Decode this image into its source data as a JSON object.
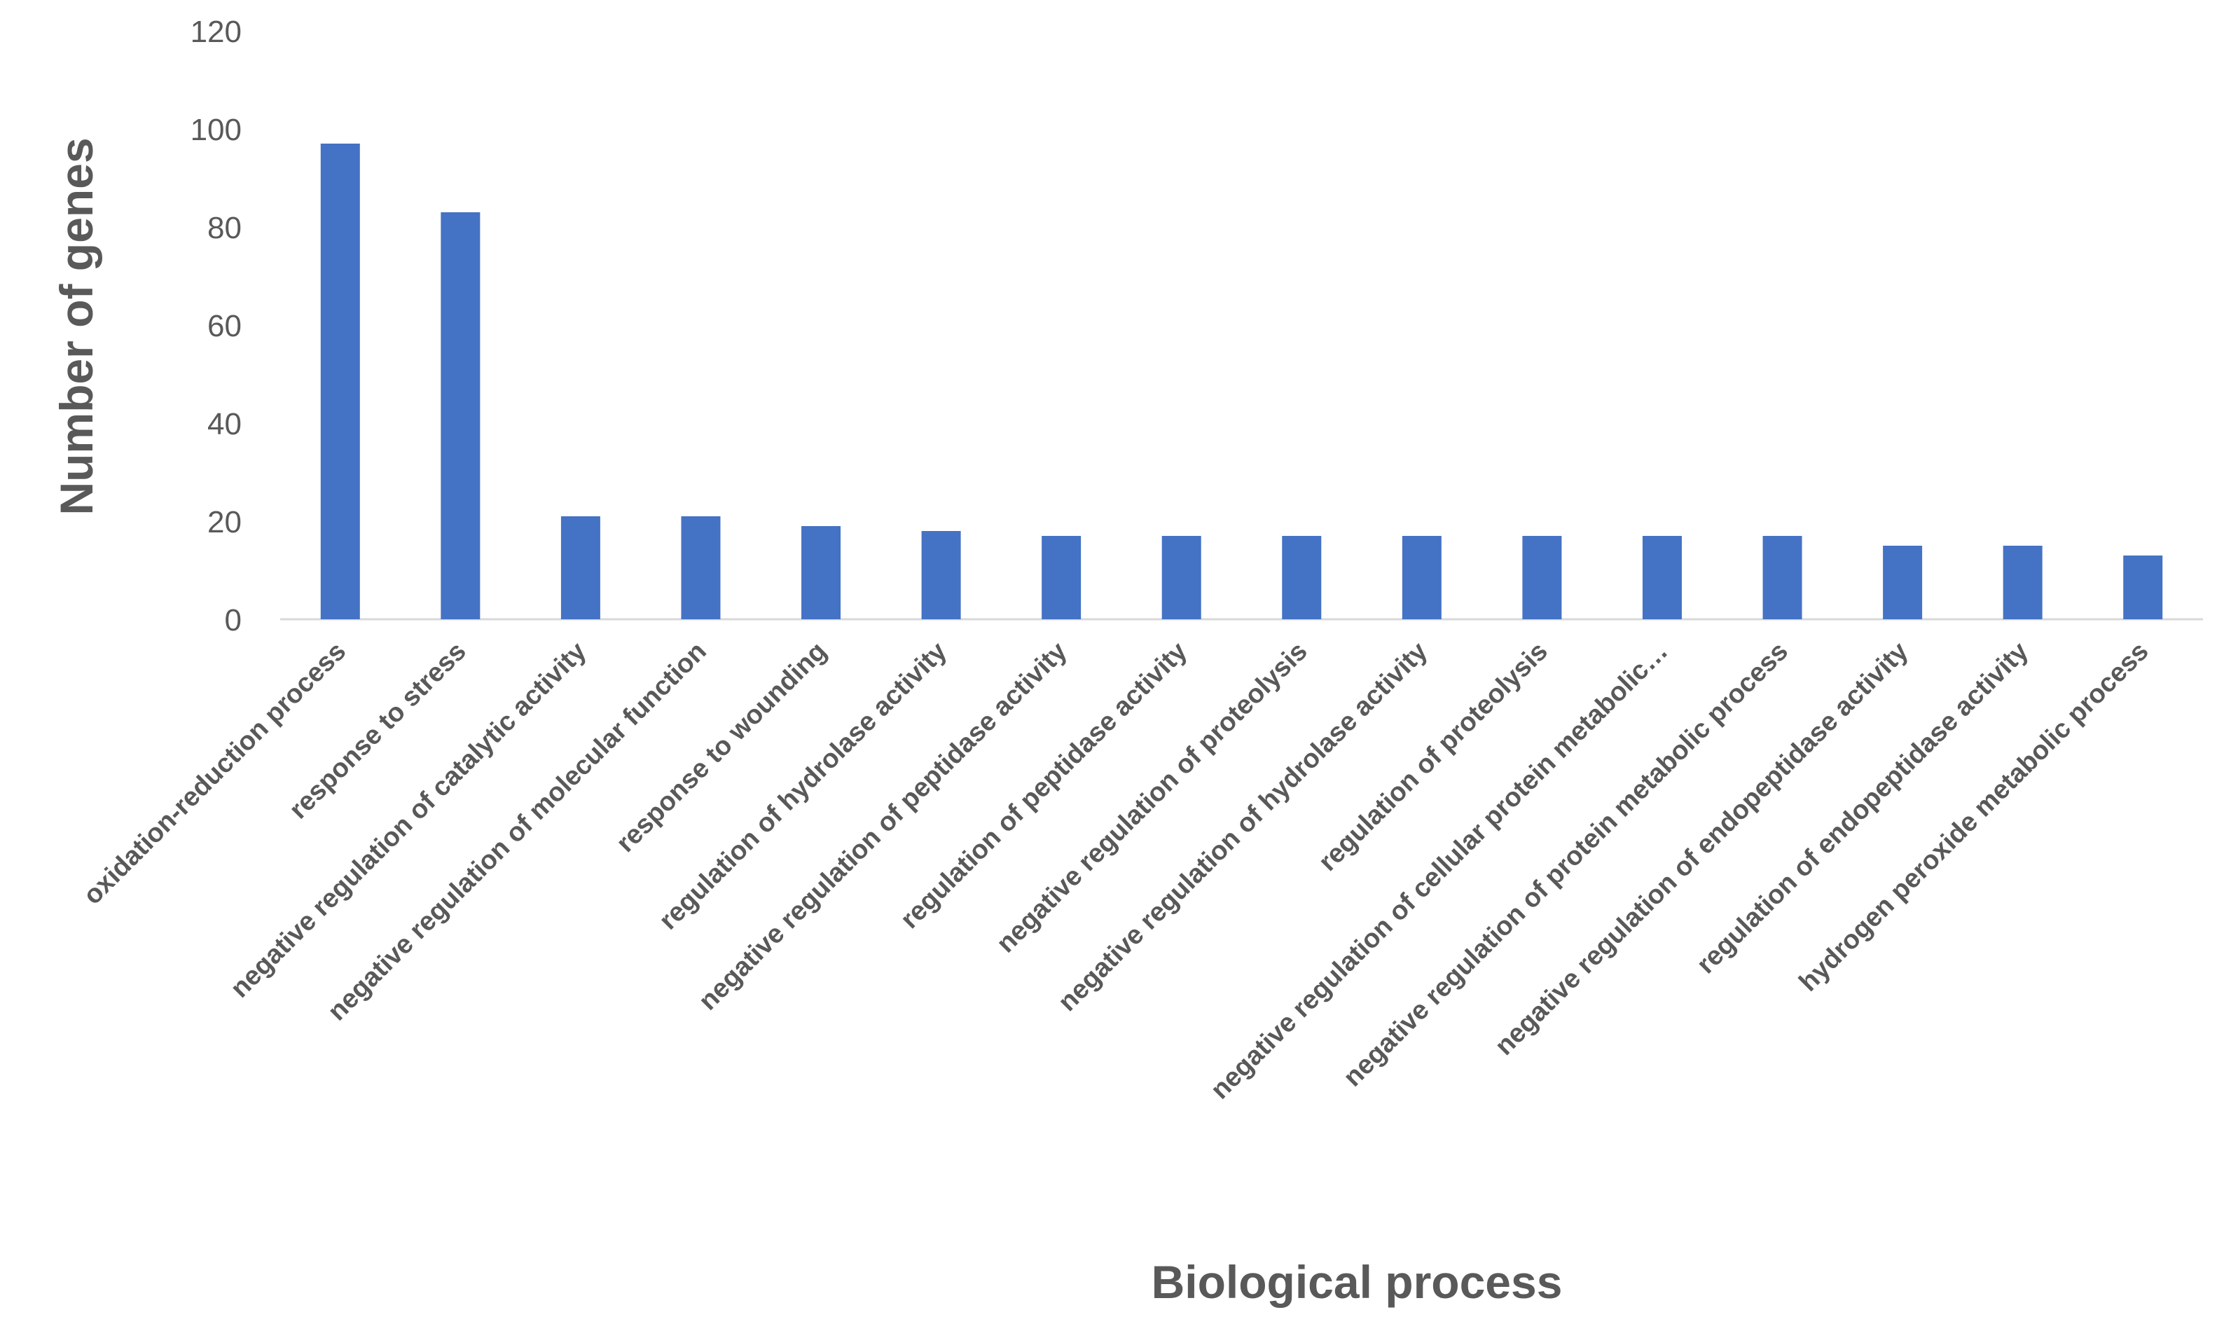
{
  "chart_data": {
    "type": "bar",
    "title": "",
    "xlabel": "Biological process",
    "ylabel": "Number of genes",
    "ylim": [
      0,
      120
    ],
    "yticks": [
      "0",
      "20",
      "40",
      "60",
      "80",
      "100",
      "120"
    ],
    "grid": false,
    "bar_color": "#4472C4",
    "categories": [
      "oxidation-reduction process",
      "response to stress",
      "negative regulation of catalytic activity",
      "negative regulation of molecular function",
      "response to wounding",
      "regulation of hydrolase activity",
      "negative regulation of peptidase activity",
      "regulation of peptidase activity",
      "negative regulation of proteolysis",
      "negative regulation of hydrolase activity",
      "regulation of proteolysis",
      "negative regulation of cellular protein metabolic…",
      "negative regulation of protein metabolic process",
      "negative regulation of endopeptidase activity",
      "regulation of endopeptidase activity",
      "hydrogen peroxide metabolic process"
    ],
    "values": [
      97,
      83,
      21,
      21,
      19,
      18,
      17,
      17,
      17,
      17,
      17,
      17,
      17,
      15,
      15,
      13
    ]
  }
}
